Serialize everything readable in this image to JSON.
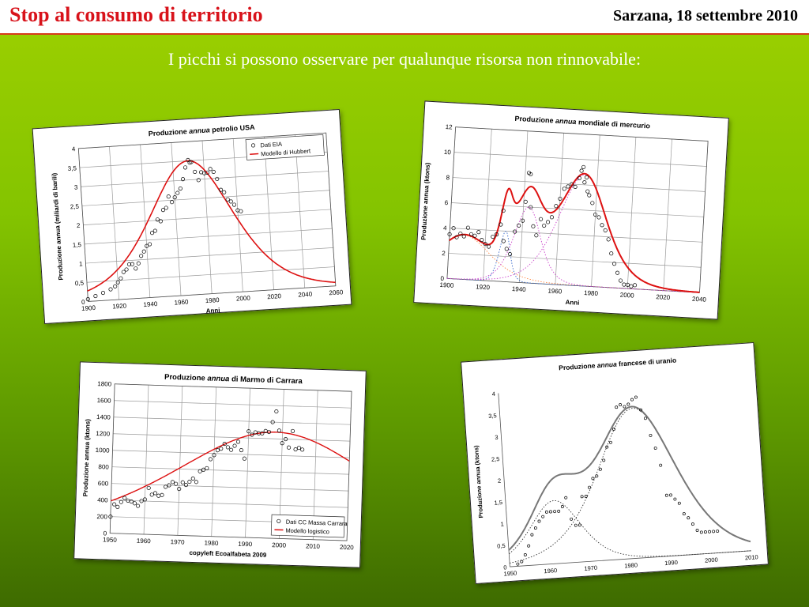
{
  "header": {
    "title": "Stop al consumo di territorio",
    "date": "Sarzana, 18 settembre 2010"
  },
  "subtitle": "I picchi si possono osservare  per qualunque risorsa non rinnovabile:",
  "colors": {
    "red": "#dd1111",
    "grey": "#777777",
    "magenta": "#cc44cc",
    "blue": "#3366cc",
    "orange": "#ff8844"
  },
  "chart_data": [
    {
      "id": "usa-oil",
      "type": "scatter",
      "title_pre": "Produzione ",
      "title_italic": "annua",
      "title_post": " petrolio USA",
      "xlabel": "Anni",
      "ylabel": "Produzione annua (miliardi di barili)",
      "xlim": [
        1900,
        2060
      ],
      "ylim": [
        0,
        4
      ],
      "xticks": [
        1900,
        1920,
        1940,
        1960,
        1980,
        2000,
        2020,
        2040,
        2060
      ],
      "yticks": [
        0,
        0.5,
        1,
        1.5,
        2,
        2.5,
        3,
        3.5,
        4
      ],
      "ytick_labels": [
        "0",
        "0,5",
        "1",
        "1,5",
        "2",
        "2,5",
        "3",
        "3,5",
        "4"
      ],
      "legend": [
        "Dati EIA",
        "Modello di Hubbert"
      ],
      "legend_position": "top-right",
      "grid": true,
      "points_x": [
        1900,
        1905,
        1910,
        1915,
        1918,
        1920,
        1922,
        1924,
        1926,
        1928,
        1930,
        1932,
        1934,
        1936,
        1938,
        1940,
        1942,
        1944,
        1946,
        1948,
        1950,
        1952,
        1954,
        1956,
        1958,
        1960,
        1962,
        1964,
        1966,
        1968,
        1970,
        1971,
        1972,
        1974,
        1976,
        1978,
        1980,
        1982,
        1984,
        1986,
        1988,
        1990,
        1992,
        1994,
        1996,
        1998,
        2000,
        2002
      ],
      "points_y": [
        0.06,
        0.13,
        0.2,
        0.28,
        0.35,
        0.45,
        0.55,
        0.71,
        0.77,
        0.9,
        0.9,
        0.78,
        0.91,
        1.1,
        1.21,
        1.35,
        1.39,
        1.68,
        1.73,
        2.02,
        1.97,
        2.26,
        2.31,
        2.6,
        2.45,
        2.57,
        2.68,
        2.79,
        3.03,
        3.33,
        3.52,
        3.45,
        3.46,
        3.2,
        2.98,
        3.18,
        3.15,
        3.16,
        3.25,
        3.17,
        2.98,
        2.69,
        2.62,
        2.43,
        2.37,
        2.28,
        2.13,
        2.1
      ],
      "model": {
        "kind": "hubbert",
        "peak_year": 1970,
        "peak": 3.5,
        "width": 18
      }
    },
    {
      "id": "world-mercury",
      "type": "scatter",
      "title_pre": "Produzione ",
      "title_italic": "annua",
      "title_post": " mondiale di mercurio",
      "xlabel": "Anni",
      "ylabel": "Produzione annua (ktons)",
      "xlim": [
        1900,
        2040
      ],
      "ylim": [
        0,
        12
      ],
      "xticks": [
        1900,
        1920,
        1940,
        1960,
        1980,
        2000,
        2020,
        2040
      ],
      "yticks": [
        0,
        2,
        4,
        6,
        8,
        10,
        12
      ],
      "ytick_labels": [
        "0",
        "2",
        "4",
        "6",
        "8",
        "10",
        "12"
      ],
      "grid": true,
      "points_x": [
        1900,
        1902,
        1904,
        1906,
        1908,
        1910,
        1912,
        1914,
        1916,
        1918,
        1920,
        1922,
        1924,
        1926,
        1928,
        1929,
        1930,
        1932,
        1934,
        1936,
        1938,
        1940,
        1941,
        1942,
        1943,
        1944,
        1946,
        1948,
        1950,
        1952,
        1954,
        1956,
        1958,
        1960,
        1962,
        1964,
        1966,
        1968,
        1970,
        1971,
        1972,
        1973,
        1974,
        1975,
        1976,
        1978,
        1980,
        1982,
        1984,
        1986,
        1988,
        1990,
        1992,
        1994,
        1996,
        1998,
        2000,
        2002,
        2004
      ],
      "points_y": [
        3.5,
        4,
        3.3,
        3.6,
        3.4,
        4.1,
        3.6,
        3.5,
        3.8,
        3.2,
        2.9,
        2.7,
        3.5,
        3.7,
        4.5,
        5.6,
        3.2,
        2.6,
        2.2,
        4,
        4.5,
        4.9,
        6.4,
        8.7,
        8.6,
        6,
        4.5,
        3.8,
        5.1,
        4.6,
        4.9,
        5.3,
        6.2,
        6.8,
        7.6,
        7.8,
        8,
        7.8,
        8.5,
        9.1,
        9.4,
        8.2,
        8.6,
        7.5,
        7.2,
        6.6,
        5.7,
        5.5,
        4.9,
        4.5,
        3.8,
        2.7,
        1.9,
        1.2,
        0.6,
        0.3,
        0.3,
        0.2,
        0.3
      ],
      "model": {
        "kind": "multi-hubbert",
        "components": [
          {
            "peak_year": 1908,
            "peak": 3.5,
            "width": 10
          },
          {
            "peak_year": 1931,
            "peak": 4.0,
            "width": 2
          },
          {
            "peak_year": 1943,
            "peak": 6.0,
            "width": 5
          },
          {
            "peak_year": 1973,
            "peak": 8.8,
            "width": 9
          }
        ]
      }
    },
    {
      "id": "carrara-marble",
      "type": "scatter",
      "title_pre": "Produzione ",
      "title_italic": "annua",
      "title_post": " di Marmo di Carrara",
      "xlabel": "copyleft Ecoalfabeta 2009",
      "ylabel": "Produzione annua (ktons)",
      "xlim": [
        1950,
        2020
      ],
      "ylim": [
        0,
        1800
      ],
      "xticks": [
        1950,
        1960,
        1970,
        1980,
        1990,
        2000,
        2010,
        2020
      ],
      "yticks": [
        0,
        200,
        400,
        600,
        800,
        1000,
        1200,
        1400,
        1600,
        1800
      ],
      "ytick_labels": [
        "0",
        "200",
        "400",
        "600",
        "800",
        "1000",
        "1200",
        "1400",
        "1600",
        "1800"
      ],
      "legend": [
        "Dati CC Massa Carrara",
        "Modello logistico"
      ],
      "legend_position": "bottom-right",
      "grid": true,
      "points_x": [
        1950,
        1951,
        1952,
        1953,
        1954,
        1955,
        1956,
        1957,
        1958,
        1959,
        1960,
        1961,
        1962,
        1963,
        1964,
        1965,
        1966,
        1967,
        1968,
        1969,
        1970,
        1971,
        1972,
        1973,
        1974,
        1975,
        1976,
        1977,
        1978,
        1979,
        1980,
        1981,
        1982,
        1983,
        1984,
        1985,
        1986,
        1987,
        1988,
        1989,
        1990,
        1991,
        1992,
        1993,
        1994,
        1995,
        1996,
        1997,
        1998,
        1999,
        2000,
        2001,
        2002,
        2003,
        2004,
        2005,
        2006
      ],
      "points_y": [
        200,
        350,
        320,
        380,
        430,
        400,
        390,
        370,
        340,
        400,
        420,
        560,
        480,
        500,
        470,
        480,
        580,
        600,
        640,
        620,
        560,
        640,
        610,
        650,
        690,
        650,
        780,
        800,
        820,
        930,
        980,
        1040,
        1060,
        1120,
        1080,
        1050,
        1100,
        1150,
        1050,
        950,
        1280,
        1240,
        1270,
        1260,
        1260,
        1290,
        1280,
        1400,
        1530,
        1300,
        1150,
        1200,
        1100,
        1300,
        1080,
        1100,
        1080
      ],
      "model": {
        "kind": "hubbert",
        "peak_year": 1998,
        "peak": 1280,
        "width": 20
      }
    },
    {
      "id": "france-uranium",
      "type": "scatter",
      "title_pre": "Produzione ",
      "title_italic": "annua",
      "title_post": " francese di uranio",
      "xlabel": "",
      "ylabel": "Produzione annua (ktons)",
      "xlim": [
        1950,
        2010
      ],
      "ylim": [
        0,
        4
      ],
      "xticks": [
        1950,
        1960,
        1970,
        1980,
        1990,
        2000,
        2010
      ],
      "yticks": [
        0,
        0.5,
        1,
        1.5,
        2,
        2.5,
        3,
        3.5,
        4
      ],
      "ytick_labels": [
        "0",
        "0,5",
        "1",
        "1,5",
        "2",
        "2,5",
        "3",
        "3,5",
        "4"
      ],
      "grid": false,
      "points_x": [
        1952,
        1953,
        1954,
        1955,
        1956,
        1957,
        1958,
        1959,
        1960,
        1961,
        1962,
        1963,
        1964,
        1965,
        1966,
        1967,
        1968,
        1969,
        1970,
        1971,
        1972,
        1973,
        1974,
        1975,
        1976,
        1977,
        1978,
        1979,
        1980,
        1981,
        1982,
        1983,
        1984,
        1985,
        1986,
        1987,
        1988,
        1989,
        1990,
        1991,
        1992,
        1993,
        1994,
        1995,
        1996,
        1997,
        1998,
        1999,
        2000,
        2001,
        2002
      ],
      "points_y": [
        0.05,
        0.1,
        0.25,
        0.45,
        0.7,
        0.85,
        1.0,
        1.1,
        1.2,
        1.2,
        1.2,
        1.2,
        1.3,
        1.5,
        1.0,
        0.85,
        0.85,
        1.5,
        1.5,
        1.7,
        1.9,
        1.95,
        2.1,
        2.3,
        2.6,
        2.7,
        3.0,
        3.5,
        3.55,
        3.5,
        3.55,
        3.65,
        3.7,
        3.4,
        3.2,
        2.8,
        2.5,
        2.1,
        1.4,
        1.4,
        1.3,
        1.2,
        0.95,
        0.85,
        0.7,
        0.55,
        0.5,
        0.5,
        0.5,
        0.5,
        0.5
      ],
      "model": {
        "kind": "multi-hubbert",
        "components": [
          {
            "peak_year": 1962,
            "peak": 1.45,
            "width": 4.2
          },
          {
            "peak_year": 1983,
            "peak": 3.45,
            "width": 6.5
          }
        ]
      }
    }
  ]
}
